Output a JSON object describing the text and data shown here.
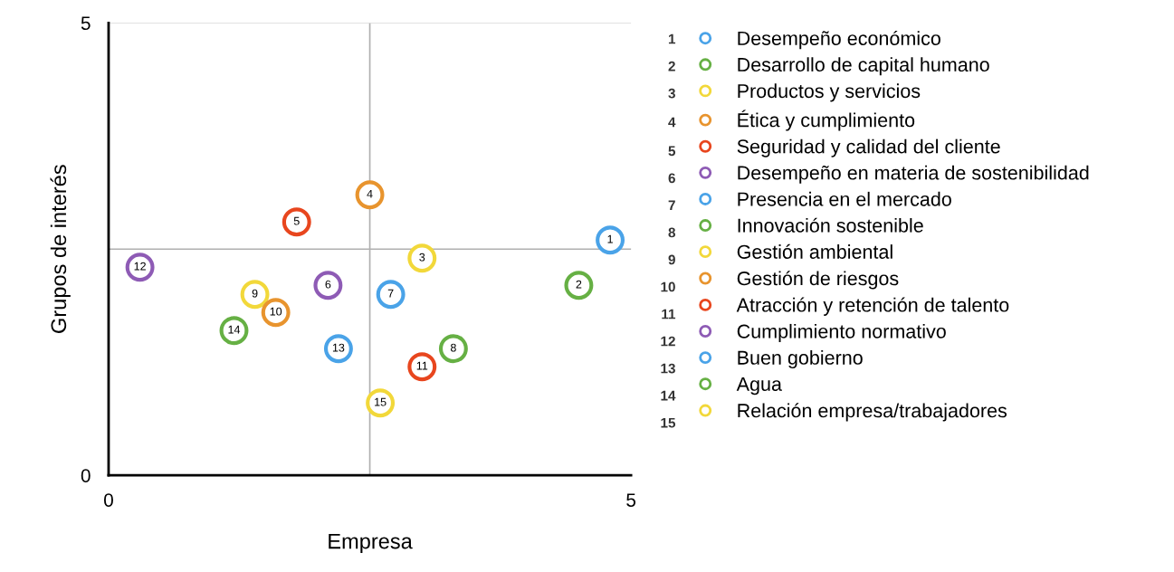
{
  "chart_data": {
    "type": "scatter",
    "xlabel": "Empresa",
    "ylabel": "Grupos de interés",
    "xlim": [
      0,
      5
    ],
    "ylim": [
      0,
      5
    ],
    "xticks": [
      0,
      5
    ],
    "yticks": [
      0,
      5
    ],
    "grid": false,
    "legend": "right",
    "marker": "circle",
    "ref_lines": [
      {
        "axis": "x",
        "value": 2.5,
        "color": "#b0b0b0"
      },
      {
        "axis": "y",
        "value": 2.5,
        "color": "#b0b0b0"
      },
      {
        "axis": "y",
        "value": 5,
        "color": "#d8d8d8"
      }
    ],
    "series": [
      {
        "name": "Desempeño económico",
        "color": "#4aa3e8",
        "x": [
          4.8
        ],
        "values": [
          2.6
        ]
      },
      {
        "name": "Desarrollo de capital humano",
        "color": "#66b044",
        "x": [
          4.5
        ],
        "values": [
          2.1
        ]
      },
      {
        "name": "Productos y servicios",
        "color": "#f2d83a",
        "x": [
          3.0
        ],
        "values": [
          2.4
        ]
      },
      {
        "name": "Ética y cumplimiento",
        "color": "#e8942e",
        "x": [
          2.5
        ],
        "values": [
          3.1
        ]
      },
      {
        "name": "Seguridad y calidad del cliente",
        "color": "#e8461e",
        "x": [
          1.8
        ],
        "values": [
          2.8
        ]
      },
      {
        "name": "Desempeño en materia de sostenibilidad",
        "color": "#8e5bb5",
        "x": [
          2.1
        ],
        "values": [
          2.1
        ]
      },
      {
        "name": "Presencia en el mercado",
        "color": "#4aa3e8",
        "x": [
          2.7
        ],
        "values": [
          2.0
        ]
      },
      {
        "name": "Innovación sostenible",
        "color": "#66b044",
        "x": [
          3.3
        ],
        "values": [
          1.4
        ]
      },
      {
        "name": "Gestión ambiental",
        "color": "#f2d83a",
        "x": [
          1.4
        ],
        "values": [
          2.0
        ]
      },
      {
        "name": "Gestión de riesgos",
        "color": "#e8942e",
        "x": [
          1.6
        ],
        "values": [
          1.8
        ]
      },
      {
        "name": "Atracción y retención de talento",
        "color": "#e8461e",
        "x": [
          3.0
        ],
        "values": [
          1.2
        ]
      },
      {
        "name": "Cumplimiento normativo",
        "color": "#8e5bb5",
        "x": [
          0.3
        ],
        "values": [
          2.3
        ]
      },
      {
        "name": "Buen gobierno",
        "color": "#4aa3e8",
        "x": [
          2.2
        ],
        "values": [
          1.4
        ]
      },
      {
        "name": "Agua",
        "color": "#66b044",
        "x": [
          1.2
        ],
        "values": [
          1.6
        ]
      },
      {
        "name": "Relación empresa/trabajadores",
        "color": "#f2d83a",
        "x": [
          2.6
        ],
        "values": [
          0.8
        ]
      }
    ],
    "annotations": [
      {
        "text": "1",
        "x": 4.8,
        "y": 2.6
      },
      {
        "text": "2",
        "x": 4.5,
        "y": 2.1
      },
      {
        "text": "3",
        "x": 3.0,
        "y": 2.4
      },
      {
        "text": "4",
        "x": 2.5,
        "y": 3.1
      },
      {
        "text": "5",
        "x": 1.8,
        "y": 2.8
      },
      {
        "text": "6",
        "x": 2.1,
        "y": 2.1
      },
      {
        "text": "7",
        "x": 2.7,
        "y": 2.0
      },
      {
        "text": "8",
        "x": 3.3,
        "y": 1.4
      },
      {
        "text": "9",
        "x": 1.4,
        "y": 2.0
      },
      {
        "text": "10",
        "x": 1.6,
        "y": 1.8
      },
      {
        "text": "11",
        "x": 3.0,
        "y": 1.2
      },
      {
        "text": "12",
        "x": 0.3,
        "y": 2.3
      },
      {
        "text": "13",
        "x": 2.2,
        "y": 1.4
      },
      {
        "text": "14",
        "x": 1.2,
        "y": 1.6
      },
      {
        "text": "15",
        "x": 2.6,
        "y": 0.8
      }
    ]
  }
}
